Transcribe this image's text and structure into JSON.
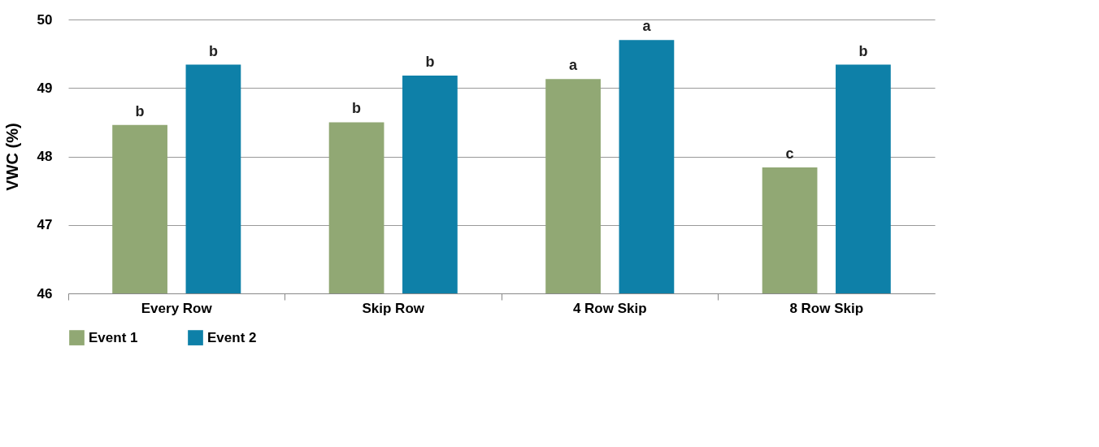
{
  "chart_data": {
    "type": "bar",
    "ylabel": "VWC (%)",
    "categories": [
      "Every Row",
      "Skip Row",
      "4 Row Skip",
      "8 Row Skip"
    ],
    "series": [
      {
        "name": "Event 1",
        "color": "#91a874",
        "values": [
          48.46,
          48.5,
          49.13,
          47.84
        ],
        "value_labels": [
          "b",
          "b",
          "a",
          "c"
        ]
      },
      {
        "name": "Event 2",
        "color": "#0e80a8",
        "values": [
          49.34,
          49.18,
          49.7,
          49.34
        ],
        "value_labels": [
          "b",
          "b",
          "a",
          "b"
        ]
      }
    ],
    "ylim": [
      46,
      50
    ],
    "yticks": [
      46,
      47,
      48,
      49,
      50
    ],
    "grid": "y",
    "legend": "bottom"
  }
}
